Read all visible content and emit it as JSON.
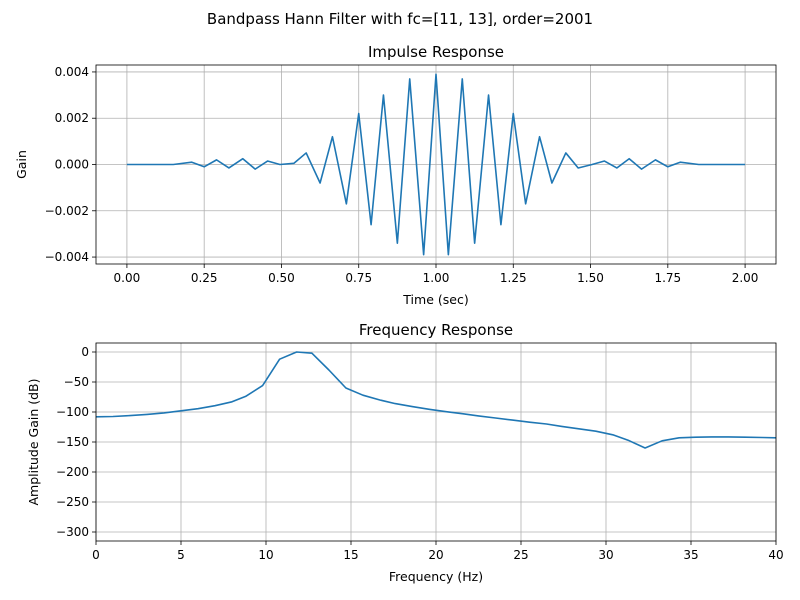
{
  "suptitle": "Bandpass Hann Filter with fc=[11, 13], order=2001",
  "chart_data": [
    {
      "type": "line",
      "title": "Impulse Response",
      "xlabel": "Time (sec)",
      "ylabel": "Gain",
      "xlim": [
        -0.1,
        2.1
      ],
      "ylim": [
        -0.0043,
        0.0043
      ],
      "xticks": [
        0.0,
        0.25,
        0.5,
        0.75,
        1.0,
        1.25,
        1.5,
        1.75,
        2.0
      ],
      "xtick_labels": [
        "0.00",
        "0.25",
        "0.50",
        "0.75",
        "1.00",
        "1.25",
        "1.50",
        "1.75",
        "2.00"
      ],
      "yticks": [
        -0.004,
        -0.002,
        0.0,
        0.002,
        0.004
      ],
      "ytick_labels": [
        "−0.004",
        "−0.002",
        "0.000",
        "0.002",
        "0.004"
      ],
      "grid": true,
      "line_color": "#1f77b4",
      "series": [
        {
          "x": [
            0.0,
            0.15,
            0.21,
            0.25,
            0.29,
            0.33,
            0.375,
            0.415,
            0.455,
            0.495,
            0.54,
            0.58,
            0.625,
            0.665,
            0.71,
            0.75,
            0.79,
            0.83,
            0.875,
            0.915,
            0.96,
            1.0,
            1.04,
            1.085,
            1.125,
            1.17,
            1.21,
            1.25,
            1.29,
            1.335,
            1.375,
            1.42,
            1.46,
            1.505,
            1.545,
            1.585,
            1.625,
            1.665,
            1.71,
            1.75,
            1.79,
            1.85,
            2.0
          ],
          "y": [
            0.0,
            0.0,
            0.0001,
            -0.0001,
            0.0002,
            -0.00015,
            0.00025,
            -0.0002,
            0.00015,
            0.0,
            5e-05,
            0.0005,
            -0.0008,
            0.0012,
            -0.0017,
            0.0022,
            -0.0026,
            0.003,
            -0.0034,
            0.0037,
            -0.0039,
            0.0039,
            -0.0039,
            0.0037,
            -0.0034,
            0.003,
            -0.0026,
            0.0022,
            -0.0017,
            0.0012,
            -0.0008,
            0.0005,
            -0.00015,
            0.0,
            0.00015,
            -0.00015,
            0.00025,
            -0.0002,
            0.0002,
            -0.0001,
            0.0001,
            0.0,
            0.0
          ]
        }
      ]
    },
    {
      "type": "line",
      "title": "Frequency Response",
      "xlabel": "Frequency (Hz)",
      "ylabel": "Amplitude Gain (dB)",
      "xlim": [
        0,
        40
      ],
      "ylim": [
        -315,
        15
      ],
      "xticks": [
        0,
        5,
        10,
        15,
        20,
        25,
        30,
        35,
        40
      ],
      "xtick_labels": [
        "0",
        "5",
        "10",
        "15",
        "20",
        "25",
        "30",
        "35",
        "40"
      ],
      "yticks": [
        0,
        -50,
        -100,
        -150,
        -200,
        -250,
        -300
      ],
      "ytick_labels": [
        "0",
        "−50",
        "−100",
        "−150",
        "−200",
        "−250",
        "−300"
      ],
      "grid": true,
      "line_color": "#1f77b4",
      "series": [
        {
          "x": [
            0,
            1,
            2,
            3,
            4,
            5,
            6,
            7,
            8,
            8.8,
            9.8,
            10.8,
            11.8,
            12.7,
            13.7,
            14.7,
            15.7,
            16.7,
            17.6,
            18.6,
            19.6,
            20.6,
            21.6,
            22.5,
            23.5,
            24.5,
            25.5,
            26.5,
            27.4,
            28.4,
            29.4,
            30.4,
            31.3,
            32.3,
            33.3,
            34.3,
            35.3,
            36.2,
            37.2,
            38.2,
            39.2,
            40
          ],
          "y": [
            -108,
            -107.5,
            -106,
            -104,
            -101.5,
            -98,
            -94.5,
            -89.5,
            -83,
            -74,
            -56,
            -12,
            0,
            -2,
            -30,
            -60,
            -72,
            -80,
            -86,
            -91,
            -95.5,
            -99.5,
            -103,
            -106.5,
            -110,
            -113.5,
            -117,
            -120,
            -124,
            -128,
            -132,
            -138,
            -147,
            -160,
            -148,
            -143,
            -142,
            -141.5,
            -141.5,
            -142,
            -142.5,
            -143
          ]
        }
      ]
    }
  ]
}
